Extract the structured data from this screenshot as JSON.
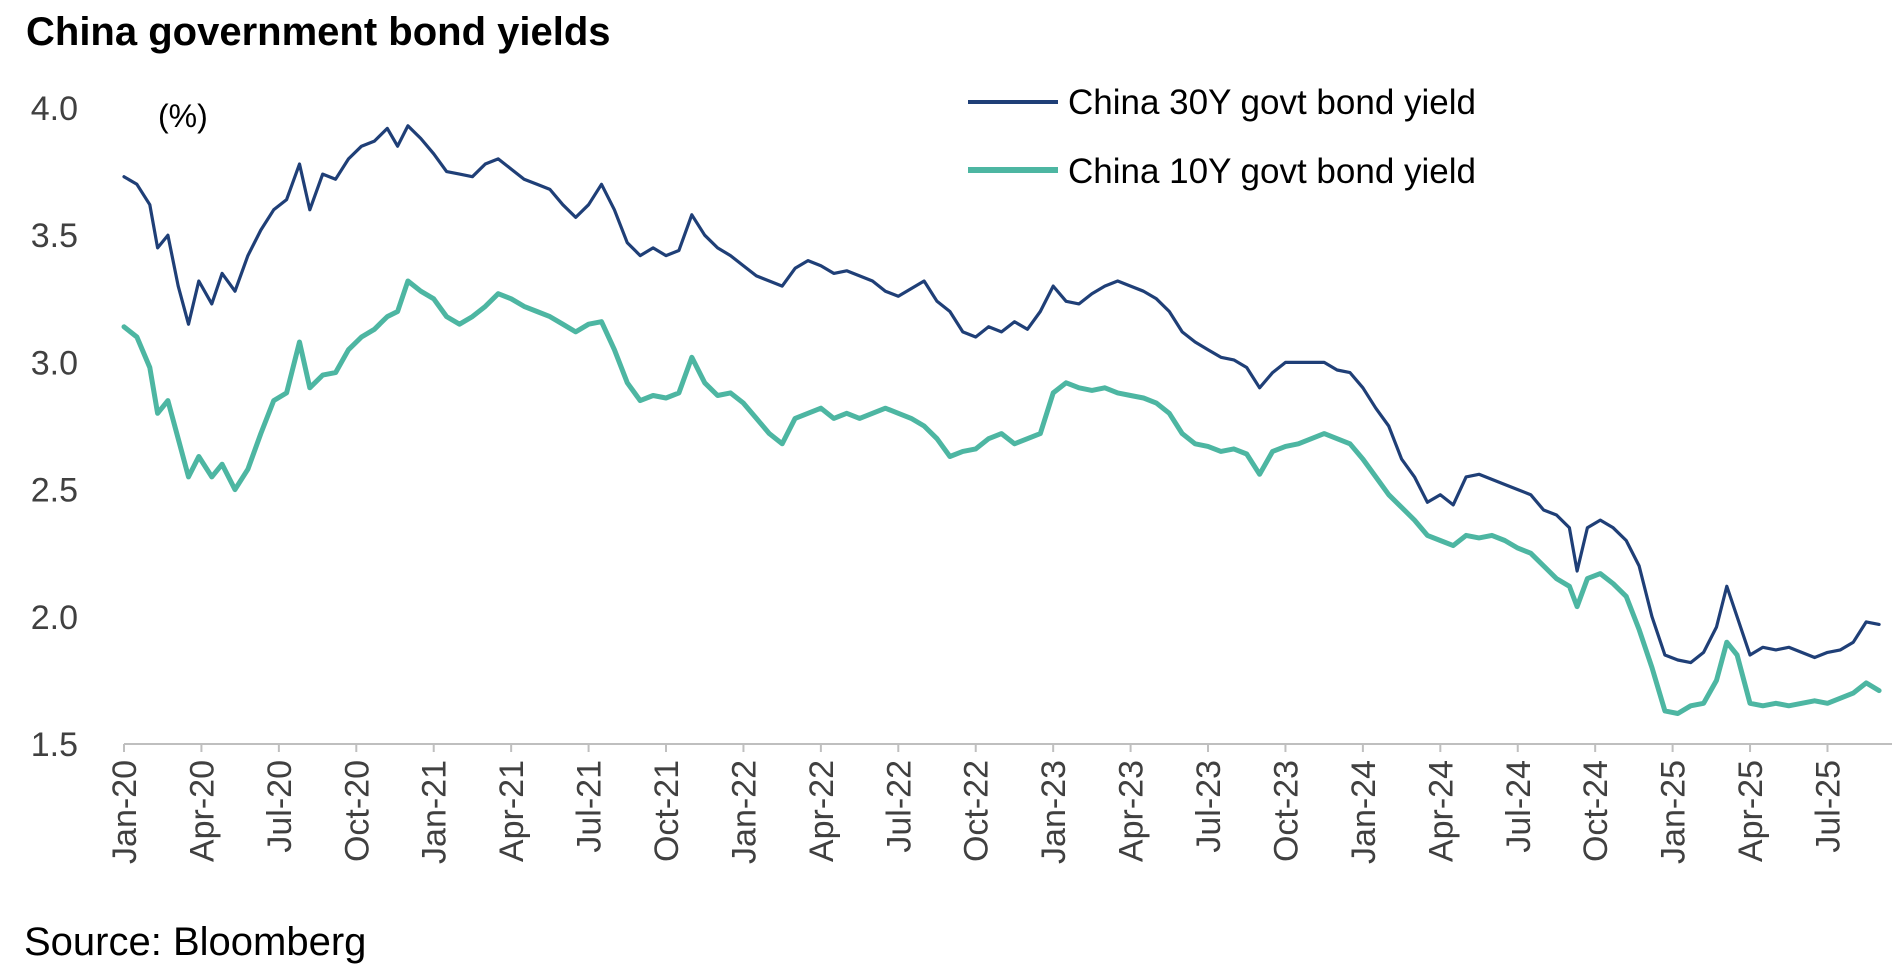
{
  "chart_data": {
    "type": "line",
    "title": "China government bond yields",
    "ylabel": "(%)",
    "xlabel": "",
    "ylim": [
      1.5,
      4.0
    ],
    "yticks": [
      "4.0",
      "3.5",
      "3.0",
      "2.5",
      "2.0",
      "1.5"
    ],
    "ytick_values": [
      4.0,
      3.5,
      3.0,
      2.5,
      2.0,
      1.5
    ],
    "x_tick_labels": [
      "Jan-20",
      "Apr-20",
      "Jul-20",
      "Oct-20",
      "Jan-21",
      "Apr-21",
      "Jul-21",
      "Oct-21",
      "Jan-22",
      "Apr-22",
      "Jul-22",
      "Oct-22",
      "Jan-23",
      "Apr-23",
      "Jul-23",
      "Oct-23",
      "Jan-24",
      "Apr-24",
      "Jul-24",
      "Oct-24",
      "Jan-25",
      "Apr-25",
      "Jul-25"
    ],
    "x_unit": "months since Jan-2020",
    "xlim": [
      0,
      68.5
    ],
    "legend_position": "top-right",
    "grid": false,
    "series": [
      {
        "name": "China 30Y govt bond yield",
        "color": "#1f3f77",
        "points": [
          [
            0,
            3.73
          ],
          [
            0.5,
            3.7
          ],
          [
            1,
            3.62
          ],
          [
            1.3,
            3.45
          ],
          [
            1.7,
            3.5
          ],
          [
            2.1,
            3.3
          ],
          [
            2.5,
            3.15
          ],
          [
            2.9,
            3.32
          ],
          [
            3.4,
            3.23
          ],
          [
            3.8,
            3.35
          ],
          [
            4.3,
            3.28
          ],
          [
            4.8,
            3.42
          ],
          [
            5.3,
            3.52
          ],
          [
            5.8,
            3.6
          ],
          [
            6.3,
            3.64
          ],
          [
            6.8,
            3.78
          ],
          [
            7.2,
            3.6
          ],
          [
            7.7,
            3.74
          ],
          [
            8.2,
            3.72
          ],
          [
            8.7,
            3.8
          ],
          [
            9.2,
            3.85
          ],
          [
            9.7,
            3.87
          ],
          [
            10.2,
            3.92
          ],
          [
            10.6,
            3.85
          ],
          [
            11.0,
            3.93
          ],
          [
            11.5,
            3.88
          ],
          [
            12.0,
            3.82
          ],
          [
            12.5,
            3.75
          ],
          [
            13.0,
            3.74
          ],
          [
            13.5,
            3.73
          ],
          [
            14.0,
            3.78
          ],
          [
            14.5,
            3.8
          ],
          [
            15.0,
            3.76
          ],
          [
            15.5,
            3.72
          ],
          [
            16.0,
            3.7
          ],
          [
            16.5,
            3.68
          ],
          [
            17.0,
            3.62
          ],
          [
            17.5,
            3.57
          ],
          [
            18.0,
            3.62
          ],
          [
            18.5,
            3.7
          ],
          [
            19.0,
            3.6
          ],
          [
            19.5,
            3.47
          ],
          [
            20.0,
            3.42
          ],
          [
            20.5,
            3.45
          ],
          [
            21.0,
            3.42
          ],
          [
            21.5,
            3.44
          ],
          [
            22.0,
            3.58
          ],
          [
            22.5,
            3.5
          ],
          [
            23.0,
            3.45
          ],
          [
            23.5,
            3.42
          ],
          [
            24.0,
            3.38
          ],
          [
            24.5,
            3.34
          ],
          [
            25.0,
            3.32
          ],
          [
            25.5,
            3.3
          ],
          [
            26.0,
            3.37
          ],
          [
            26.5,
            3.4
          ],
          [
            27.0,
            3.38
          ],
          [
            27.5,
            3.35
          ],
          [
            28.0,
            3.36
          ],
          [
            28.5,
            3.34
          ],
          [
            29.0,
            3.32
          ],
          [
            29.5,
            3.28
          ],
          [
            30.0,
            3.26
          ],
          [
            30.5,
            3.29
          ],
          [
            31.0,
            3.32
          ],
          [
            31.5,
            3.24
          ],
          [
            32.0,
            3.2
          ],
          [
            32.5,
            3.12
          ],
          [
            33.0,
            3.1
          ],
          [
            33.5,
            3.14
          ],
          [
            34.0,
            3.12
          ],
          [
            34.5,
            3.16
          ],
          [
            35.0,
            3.13
          ],
          [
            35.5,
            3.2
          ],
          [
            36.0,
            3.3
          ],
          [
            36.5,
            3.24
          ],
          [
            37.0,
            3.23
          ],
          [
            37.5,
            3.27
          ],
          [
            38.0,
            3.3
          ],
          [
            38.5,
            3.32
          ],
          [
            39.0,
            3.3
          ],
          [
            39.5,
            3.28
          ],
          [
            40.0,
            3.25
          ],
          [
            40.5,
            3.2
          ],
          [
            41.0,
            3.12
          ],
          [
            41.5,
            3.08
          ],
          [
            42.0,
            3.05
          ],
          [
            42.5,
            3.02
          ],
          [
            43.0,
            3.01
          ],
          [
            43.5,
            2.98
          ],
          [
            44.0,
            2.9
          ],
          [
            44.5,
            2.96
          ],
          [
            45.0,
            3.0
          ],
          [
            45.5,
            3.0
          ],
          [
            46.0,
            3.0
          ],
          [
            46.5,
            3.0
          ],
          [
            47.0,
            2.97
          ],
          [
            47.5,
            2.96
          ],
          [
            48.0,
            2.9
          ],
          [
            48.5,
            2.82
          ],
          [
            49.0,
            2.75
          ],
          [
            49.5,
            2.62
          ],
          [
            50.0,
            2.55
          ],
          [
            50.5,
            2.45
          ],
          [
            51.0,
            2.48
          ],
          [
            51.5,
            2.44
          ],
          [
            52.0,
            2.55
          ],
          [
            52.5,
            2.56
          ],
          [
            53.0,
            2.54
          ],
          [
            53.5,
            2.52
          ],
          [
            54.0,
            2.5
          ],
          [
            54.5,
            2.48
          ],
          [
            55.0,
            2.42
          ],
          [
            55.5,
            2.4
          ],
          [
            56.0,
            2.35
          ],
          [
            56.3,
            2.18
          ],
          [
            56.7,
            2.35
          ],
          [
            57.2,
            2.38
          ],
          [
            57.7,
            2.35
          ],
          [
            58.2,
            2.3
          ],
          [
            58.7,
            2.2
          ],
          [
            59.2,
            2.0
          ],
          [
            59.7,
            1.85
          ],
          [
            60.2,
            1.83
          ],
          [
            60.7,
            1.82
          ],
          [
            61.2,
            1.86
          ],
          [
            61.7,
            1.96
          ],
          [
            62.1,
            2.12
          ],
          [
            62.5,
            2.0
          ],
          [
            63.0,
            1.85
          ],
          [
            63.5,
            1.88
          ],
          [
            64.0,
            1.87
          ],
          [
            64.5,
            1.88
          ],
          [
            65.0,
            1.86
          ],
          [
            65.5,
            1.84
          ],
          [
            66.0,
            1.86
          ],
          [
            66.5,
            1.87
          ],
          [
            67.0,
            1.9
          ],
          [
            67.5,
            1.98
          ],
          [
            68.0,
            1.97
          ]
        ]
      },
      {
        "name": "China 10Y govt bond yield",
        "color": "#4db6a2",
        "points": [
          [
            0,
            3.14
          ],
          [
            0.5,
            3.1
          ],
          [
            1,
            2.98
          ],
          [
            1.3,
            2.8
          ],
          [
            1.7,
            2.85
          ],
          [
            2.1,
            2.7
          ],
          [
            2.5,
            2.55
          ],
          [
            2.9,
            2.63
          ],
          [
            3.4,
            2.55
          ],
          [
            3.8,
            2.6
          ],
          [
            4.3,
            2.5
          ],
          [
            4.8,
            2.58
          ],
          [
            5.3,
            2.72
          ],
          [
            5.8,
            2.85
          ],
          [
            6.3,
            2.88
          ],
          [
            6.8,
            3.08
          ],
          [
            7.2,
            2.9
          ],
          [
            7.7,
            2.95
          ],
          [
            8.2,
            2.96
          ],
          [
            8.7,
            3.05
          ],
          [
            9.2,
            3.1
          ],
          [
            9.7,
            3.13
          ],
          [
            10.2,
            3.18
          ],
          [
            10.6,
            3.2
          ],
          [
            11.0,
            3.32
          ],
          [
            11.5,
            3.28
          ],
          [
            12.0,
            3.25
          ],
          [
            12.5,
            3.18
          ],
          [
            13.0,
            3.15
          ],
          [
            13.5,
            3.18
          ],
          [
            14.0,
            3.22
          ],
          [
            14.5,
            3.27
          ],
          [
            15.0,
            3.25
          ],
          [
            15.5,
            3.22
          ],
          [
            16.0,
            3.2
          ],
          [
            16.5,
            3.18
          ],
          [
            17.0,
            3.15
          ],
          [
            17.5,
            3.12
          ],
          [
            18.0,
            3.15
          ],
          [
            18.5,
            3.16
          ],
          [
            19.0,
            3.05
          ],
          [
            19.5,
            2.92
          ],
          [
            20.0,
            2.85
          ],
          [
            20.5,
            2.87
          ],
          [
            21.0,
            2.86
          ],
          [
            21.5,
            2.88
          ],
          [
            22.0,
            3.02
          ],
          [
            22.5,
            2.92
          ],
          [
            23.0,
            2.87
          ],
          [
            23.5,
            2.88
          ],
          [
            24.0,
            2.84
          ],
          [
            24.5,
            2.78
          ],
          [
            25.0,
            2.72
          ],
          [
            25.5,
            2.68
          ],
          [
            26.0,
            2.78
          ],
          [
            26.5,
            2.8
          ],
          [
            27.0,
            2.82
          ],
          [
            27.5,
            2.78
          ],
          [
            28.0,
            2.8
          ],
          [
            28.5,
            2.78
          ],
          [
            29.0,
            2.8
          ],
          [
            29.5,
            2.82
          ],
          [
            30.0,
            2.8
          ],
          [
            30.5,
            2.78
          ],
          [
            31.0,
            2.75
          ],
          [
            31.5,
            2.7
          ],
          [
            32.0,
            2.63
          ],
          [
            32.5,
            2.65
          ],
          [
            33.0,
            2.66
          ],
          [
            33.5,
            2.7
          ],
          [
            34.0,
            2.72
          ],
          [
            34.5,
            2.68
          ],
          [
            35.0,
            2.7
          ],
          [
            35.5,
            2.72
          ],
          [
            36.0,
            2.88
          ],
          [
            36.5,
            2.92
          ],
          [
            37.0,
            2.9
          ],
          [
            37.5,
            2.89
          ],
          [
            38.0,
            2.9
          ],
          [
            38.5,
            2.88
          ],
          [
            39.0,
            2.87
          ],
          [
            39.5,
            2.86
          ],
          [
            40.0,
            2.84
          ],
          [
            40.5,
            2.8
          ],
          [
            41.0,
            2.72
          ],
          [
            41.5,
            2.68
          ],
          [
            42.0,
            2.67
          ],
          [
            42.5,
            2.65
          ],
          [
            43.0,
            2.66
          ],
          [
            43.5,
            2.64
          ],
          [
            44.0,
            2.56
          ],
          [
            44.5,
            2.65
          ],
          [
            45.0,
            2.67
          ],
          [
            45.5,
            2.68
          ],
          [
            46.0,
            2.7
          ],
          [
            46.5,
            2.72
          ],
          [
            47.0,
            2.7
          ],
          [
            47.5,
            2.68
          ],
          [
            48.0,
            2.62
          ],
          [
            48.5,
            2.55
          ],
          [
            49.0,
            2.48
          ],
          [
            49.5,
            2.43
          ],
          [
            50.0,
            2.38
          ],
          [
            50.5,
            2.32
          ],
          [
            51.0,
            2.3
          ],
          [
            51.5,
            2.28
          ],
          [
            52.0,
            2.32
          ],
          [
            52.5,
            2.31
          ],
          [
            53.0,
            2.32
          ],
          [
            53.5,
            2.3
          ],
          [
            54.0,
            2.27
          ],
          [
            54.5,
            2.25
          ],
          [
            55.0,
            2.2
          ],
          [
            55.5,
            2.15
          ],
          [
            56.0,
            2.12
          ],
          [
            56.3,
            2.04
          ],
          [
            56.7,
            2.15
          ],
          [
            57.2,
            2.17
          ],
          [
            57.7,
            2.13
          ],
          [
            58.2,
            2.08
          ],
          [
            58.7,
            1.95
          ],
          [
            59.2,
            1.8
          ],
          [
            59.7,
            1.63
          ],
          [
            60.2,
            1.62
          ],
          [
            60.7,
            1.65
          ],
          [
            61.2,
            1.66
          ],
          [
            61.7,
            1.75
          ],
          [
            62.1,
            1.9
          ],
          [
            62.5,
            1.85
          ],
          [
            63.0,
            1.66
          ],
          [
            63.5,
            1.65
          ],
          [
            64.0,
            1.66
          ],
          [
            64.5,
            1.65
          ],
          [
            65.0,
            1.66
          ],
          [
            65.5,
            1.67
          ],
          [
            66.0,
            1.66
          ],
          [
            66.5,
            1.68
          ],
          [
            67.0,
            1.7
          ],
          [
            67.5,
            1.74
          ],
          [
            68.0,
            1.71
          ]
        ]
      }
    ]
  },
  "footer": {
    "source": "Source: Bloomberg"
  }
}
